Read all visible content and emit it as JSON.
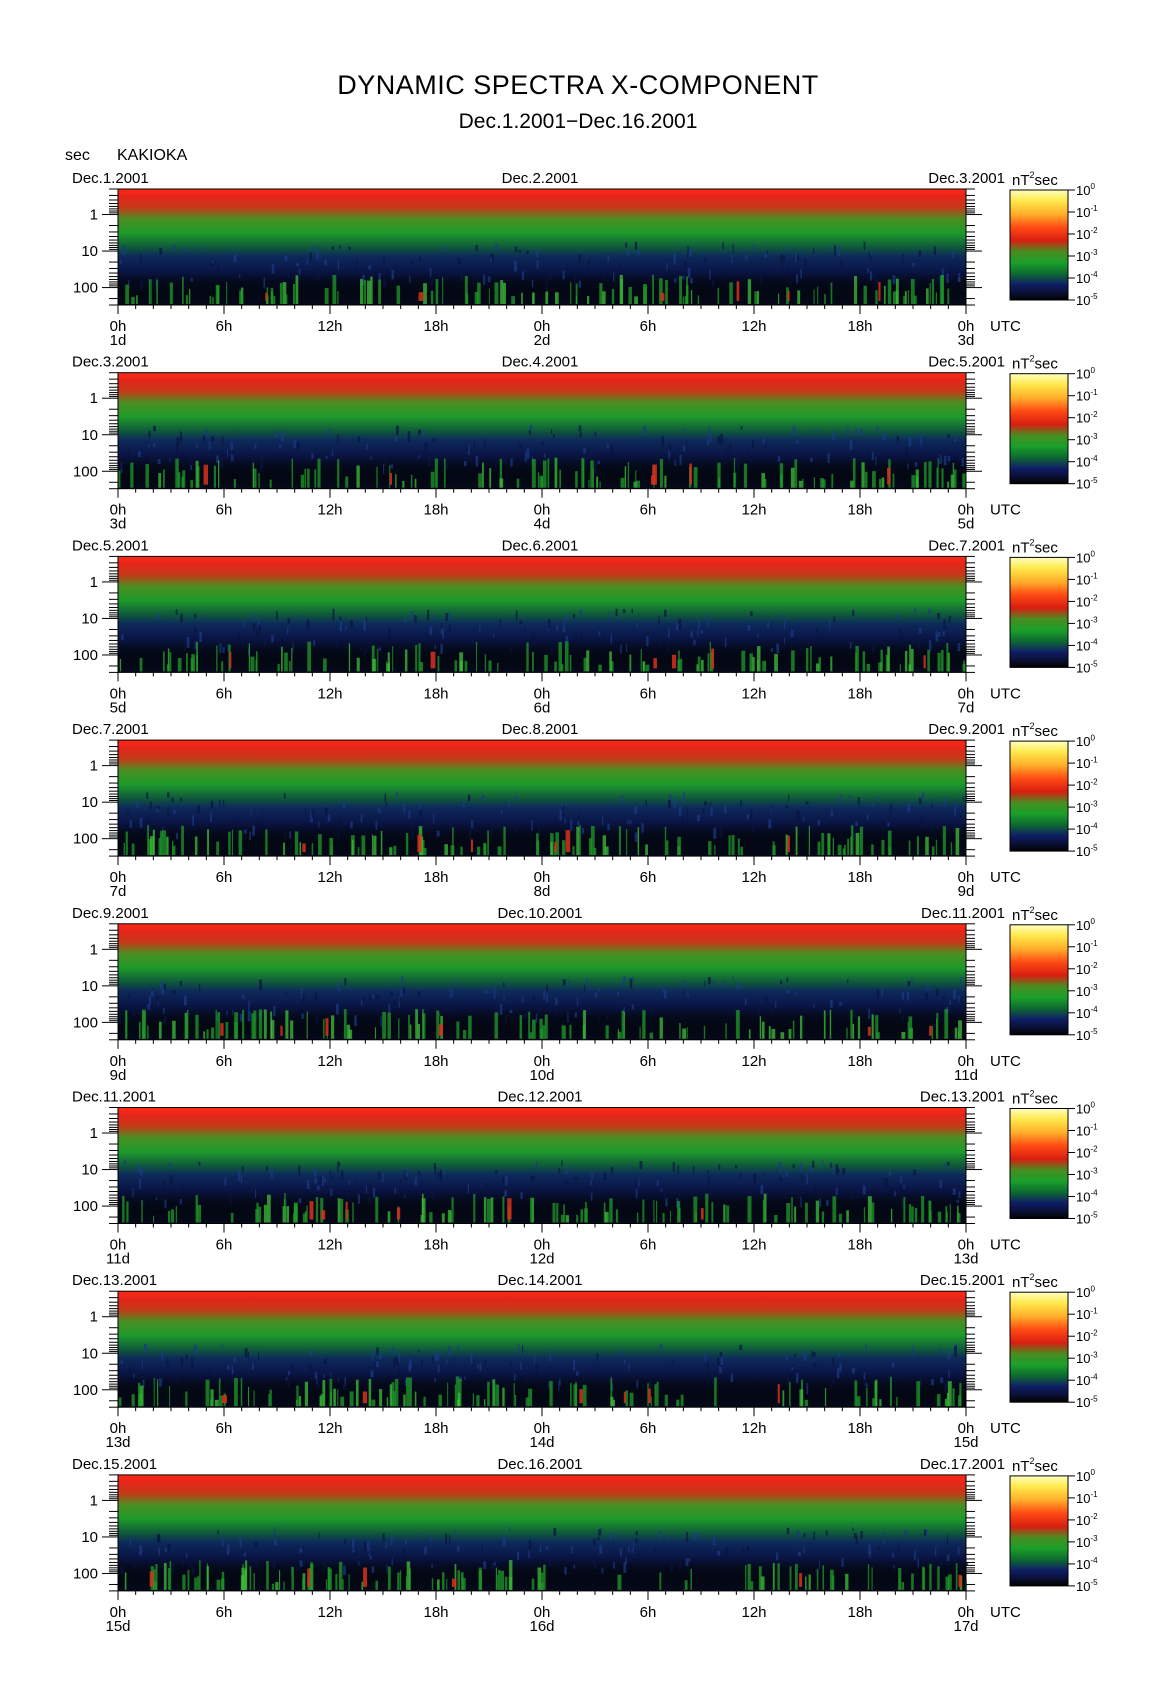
{
  "title": "DYNAMIC SPECTRA X-COMPONENT",
  "subtitle": "Dec.1.2001−Dec.16.2001",
  "period_unit": "sec",
  "station": "KAKIOKA",
  "colorbar_unit": "nT",
  "colorbar_unit_exp": "2",
  "colorbar_unit_suffix": "sec",
  "colorbar_ticks": [
    {
      "base": "10",
      "exp": "0"
    },
    {
      "base": "10",
      "exp": "-1"
    },
    {
      "base": "10",
      "exp": "-2"
    },
    {
      "base": "10",
      "exp": "-3"
    },
    {
      "base": "10",
      "exp": "-4"
    },
    {
      "base": "10",
      "exp": "-5"
    }
  ],
  "colors": {
    "red": "#e8231c",
    "green": "#21a52b",
    "navy": "#0e1c5c",
    "black": "#000000",
    "yellow": "#ffe84a"
  },
  "chart_data": {
    "type": "heatmap",
    "x_axis": "time (UTC)",
    "y_axis": "period (sec), log scale",
    "ylim": [
      0.2,
      300
    ],
    "y_ticks": [
      "1",
      "10",
      "100"
    ],
    "x_ticks": [
      "0h",
      "6h",
      "12h",
      "18h",
      "0h",
      "6h",
      "12h",
      "18h",
      "0h"
    ],
    "x_unit": "UTC",
    "color_range": [
      1e-05,
      1
    ],
    "color_scale": "log",
    "panels": [
      {
        "date_left": "Dec.1.2001",
        "date_mid": "Dec.2.2001",
        "date_right": "Dec.3.2001",
        "day_labels": [
          "1d",
          "2d",
          "3d"
        ]
      },
      {
        "date_left": "Dec.3.2001",
        "date_mid": "Dec.4.2001",
        "date_right": "Dec.5.2001",
        "day_labels": [
          "3d",
          "4d",
          "5d"
        ]
      },
      {
        "date_left": "Dec.5.2001",
        "date_mid": "Dec.6.2001",
        "date_right": "Dec.7.2001",
        "day_labels": [
          "5d",
          "6d",
          "7d"
        ]
      },
      {
        "date_left": "Dec.7.2001",
        "date_mid": "Dec.8.2001",
        "date_right": "Dec.9.2001",
        "day_labels": [
          "7d",
          "8d",
          "9d"
        ]
      },
      {
        "date_left": "Dec.9.2001",
        "date_mid": "Dec.10.2001",
        "date_right": "Dec.11.2001",
        "day_labels": [
          "9d",
          "10d",
          "11d"
        ]
      },
      {
        "date_left": "Dec.11.2001",
        "date_mid": "Dec.12.2001",
        "date_right": "Dec.13.2001",
        "day_labels": [
          "11d",
          "12d",
          "13d"
        ]
      },
      {
        "date_left": "Dec.13.2001",
        "date_mid": "Dec.14.2001",
        "date_right": "Dec.15.2001",
        "day_labels": [
          "13d",
          "14d",
          "15d"
        ]
      },
      {
        "date_left": "Dec.15.2001",
        "date_mid": "Dec.16.2001",
        "date_right": "Dec.17.2001",
        "day_labels": [
          "15d",
          "16d",
          "17d"
        ]
      }
    ]
  }
}
